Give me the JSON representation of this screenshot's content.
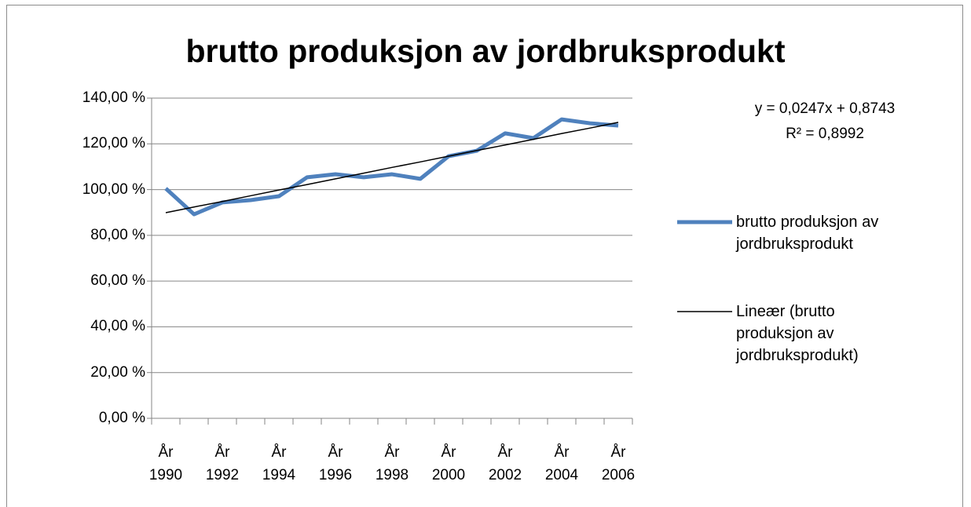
{
  "chart_data": {
    "type": "line",
    "title": "brutto produksjon av jordbruksprodukt",
    "categories": [
      "År 1990",
      null,
      "År 1992",
      null,
      "År 1994",
      null,
      "År 1996",
      null,
      "År 1998",
      null,
      "År 2000",
      null,
      "År 2002",
      null,
      "År 2004",
      null,
      "År 2006"
    ],
    "series": [
      {
        "name": "brutto produksjon av jordbruksprodukt",
        "color": "#4f81bd",
        "values": [
          100.5,
          89.2,
          94.4,
          95.4,
          97.1,
          105.4,
          106.7,
          105.4,
          106.7,
          104.7,
          114.6,
          117,
          124.6,
          122.5,
          130.7,
          129,
          128
        ]
      },
      {
        "name": "Lineær (brutto produksjon av jordbruksprodukt)",
        "color": "#000000",
        "values": [
          89.9,
          92.4,
          94.8,
          97.3,
          99.8,
          102.2,
          104.7,
          107.2,
          109.7,
          112.1,
          114.6,
          117.1,
          119.5,
          122,
          124.5,
          126.9,
          129.4
        ]
      }
    ],
    "annotations": [
      "y = 0,0247x + 0,8743",
      "R² = 0,8992"
    ],
    "ylim": [
      0,
      140
    ],
    "yticks": [
      {
        "value": 0,
        "label": "0,00 %"
      },
      {
        "value": 20,
        "label": "20,00 %"
      },
      {
        "value": 40,
        "label": "40,00 %"
      },
      {
        "value": 60,
        "label": "60,00 %"
      },
      {
        "value": 80,
        "label": "80,00 %"
      },
      {
        "value": 100,
        "label": "100,00 %"
      },
      {
        "value": 120,
        "label": "120,00 %"
      },
      {
        "value": 140,
        "label": "140,00 %"
      }
    ],
    "grid": true,
    "legend": "right"
  }
}
